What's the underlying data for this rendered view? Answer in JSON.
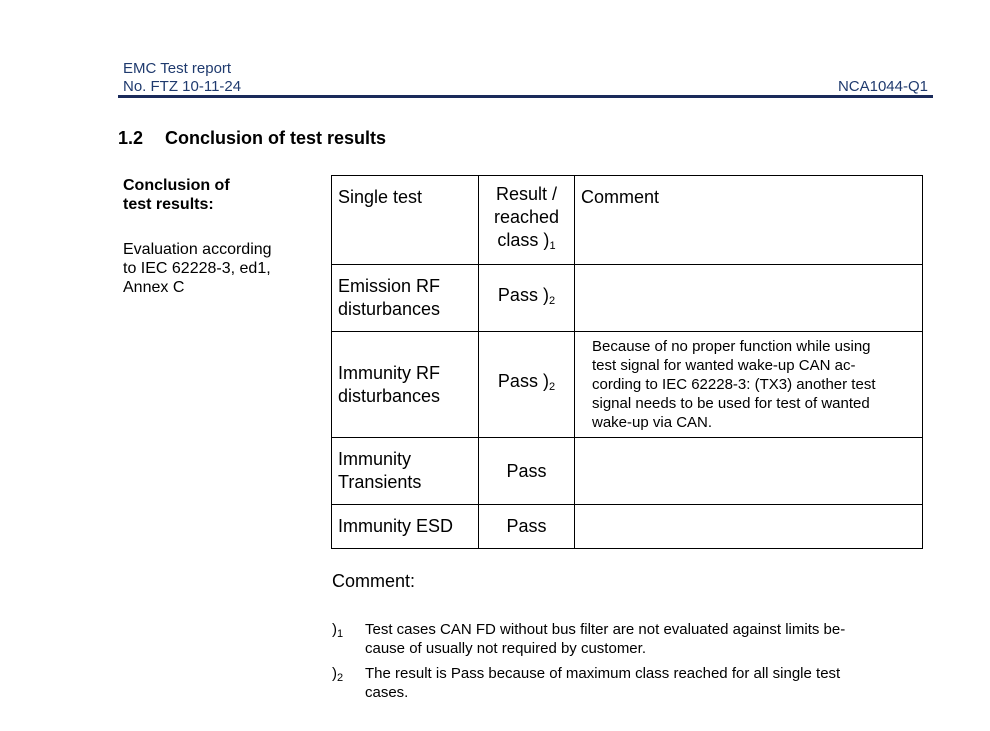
{
  "header": {
    "title": "EMC Test report",
    "report_no": "No. FTZ 10-11-24",
    "doc_id": "NCA1044-Q1"
  },
  "section": {
    "number": "1.2",
    "title": "Conclusion of test results"
  },
  "sidebar": {
    "heading_lines": [
      "Conclusion of",
      "test results:"
    ],
    "evaluation_lines": [
      "Evaluation according",
      "to IEC 62228-3, ed1,",
      "Annex C"
    ]
  },
  "table": {
    "headers": {
      "single_test": "Single test",
      "result_lines": [
        "Result /",
        "reached",
        "class )"
      ],
      "result_note": "1",
      "comment": "Comment"
    },
    "rows": [
      {
        "test_lines": [
          "Emission RF",
          "disturbances"
        ],
        "result": "Pass )",
        "note": "2",
        "comment_lines": []
      },
      {
        "test_lines": [
          "Immunity RF",
          "disturbances"
        ],
        "result": "Pass )",
        "note": "2",
        "comment_lines": [
          "Because of no proper function while using",
          "test signal for wanted wake-up CAN ac-",
          "cording to IEC 62228-3: (TX3) another test",
          "signal needs to be used for test of wanted",
          "wake-up via CAN."
        ]
      },
      {
        "test_lines": [
          "Immunity",
          "Transients"
        ],
        "result": "Pass",
        "note": "",
        "comment_lines": []
      },
      {
        "test_lines": [
          "Immunity ESD"
        ],
        "result": "Pass",
        "note": "",
        "comment_lines": []
      }
    ]
  },
  "comment": {
    "label": "Comment:",
    "footnotes": [
      {
        "mark": ")",
        "num": "1",
        "lines": [
          "Test cases CAN FD without bus filter are not evaluated against limits be-",
          "cause of usually not required by customer."
        ]
      },
      {
        "mark": ")",
        "num": "2",
        "lines": [
          "The result is Pass because of maximum class reached for all single test",
          "cases."
        ]
      }
    ]
  }
}
